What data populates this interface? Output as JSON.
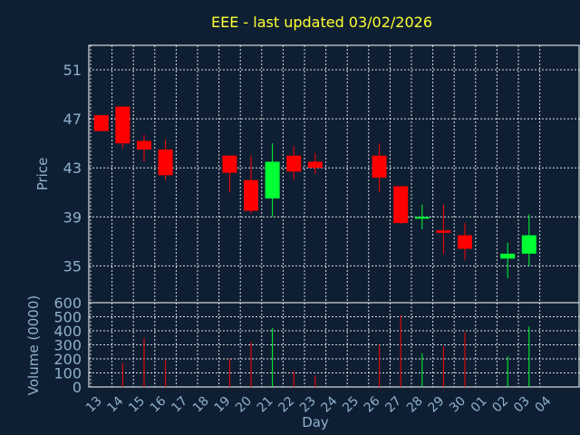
{
  "chart_data": {
    "type": "candlestick",
    "title": "EEE - last updated 03/02/2026",
    "xlabel": "Day",
    "price_panel": {
      "ylabel": "Price",
      "ylim": [
        32,
        53
      ],
      "yticks": [
        35,
        39,
        43,
        47,
        51
      ]
    },
    "volume_panel": {
      "ylabel": "Volume (0000)",
      "ylim": [
        0,
        600
      ],
      "yticks": [
        0,
        100,
        200,
        300,
        400,
        500,
        600
      ]
    },
    "days": [
      "13",
      "14",
      "15",
      "16",
      "17",
      "18",
      "19",
      "20",
      "21",
      "22",
      "23",
      "24",
      "25",
      "26",
      "27",
      "28",
      "29",
      "30",
      "01",
      "02",
      "03",
      "04"
    ],
    "colors": {
      "up": "#00ff33",
      "down": "#ff0000",
      "background": "#0f1f33",
      "title": "#ffff33",
      "axis_text": "#8fb0cc"
    },
    "candles": [
      {
        "day": "13",
        "open": 47.3,
        "high": 47.3,
        "low": 46.0,
        "close": 46.0
      },
      {
        "day": "14",
        "open": 48.0,
        "high": 48.0,
        "low": 44.6,
        "close": 45.0
      },
      {
        "day": "15",
        "open": 45.2,
        "high": 45.7,
        "low": 43.5,
        "close": 44.5
      },
      {
        "day": "16",
        "open": 44.5,
        "high": 45.3,
        "low": 42.0,
        "close": 42.4
      },
      {
        "day": "19",
        "open": 44.0,
        "high": 44.0,
        "low": 41.0,
        "close": 42.6
      },
      {
        "day": "20",
        "open": 42.0,
        "high": 44.0,
        "low": 39.3,
        "close": 39.5
      },
      {
        "day": "21",
        "open": 40.5,
        "high": 45.0,
        "low": 39.0,
        "close": 43.5
      },
      {
        "day": "22",
        "open": 44.0,
        "high": 44.8,
        "low": 42.0,
        "close": 42.7
      },
      {
        "day": "23",
        "open": 43.5,
        "high": 44.2,
        "low": 42.5,
        "close": 43.0
      },
      {
        "day": "26",
        "open": 44.0,
        "high": 45.0,
        "low": 41.0,
        "close": 42.2
      },
      {
        "day": "27",
        "open": 41.5,
        "high": 41.5,
        "low": 38.4,
        "close": 38.5
      },
      {
        "day": "28",
        "open": 39.0,
        "high": 40.0,
        "low": 38.0,
        "close": 39.0
      },
      {
        "day": "29",
        "open": 37.9,
        "high": 40.0,
        "low": 36.0,
        "close": 37.7
      },
      {
        "day": "30",
        "open": 37.5,
        "high": 38.5,
        "low": 35.5,
        "close": 36.4
      },
      {
        "day": "02",
        "open": 35.6,
        "high": 36.9,
        "low": 34.0,
        "close": 36.0
      },
      {
        "day": "03",
        "open": 36.0,
        "high": 39.2,
        "low": 35.0,
        "close": 37.5
      }
    ],
    "volumes": [
      {
        "day": "14",
        "value": 170
      },
      {
        "day": "15",
        "value": 350
      },
      {
        "day": "16",
        "value": 190
      },
      {
        "day": "19",
        "value": 200
      },
      {
        "day": "20",
        "value": 320
      },
      {
        "day": "21",
        "value": 420
      },
      {
        "day": "22",
        "value": 110
      },
      {
        "day": "23",
        "value": 80
      },
      {
        "day": "26",
        "value": 300
      },
      {
        "day": "27",
        "value": 510
      },
      {
        "day": "28",
        "value": 240
      },
      {
        "day": "29",
        "value": 290
      },
      {
        "day": "30",
        "value": 390
      },
      {
        "day": "02",
        "value": 220
      },
      {
        "day": "03",
        "value": 430
      }
    ]
  }
}
